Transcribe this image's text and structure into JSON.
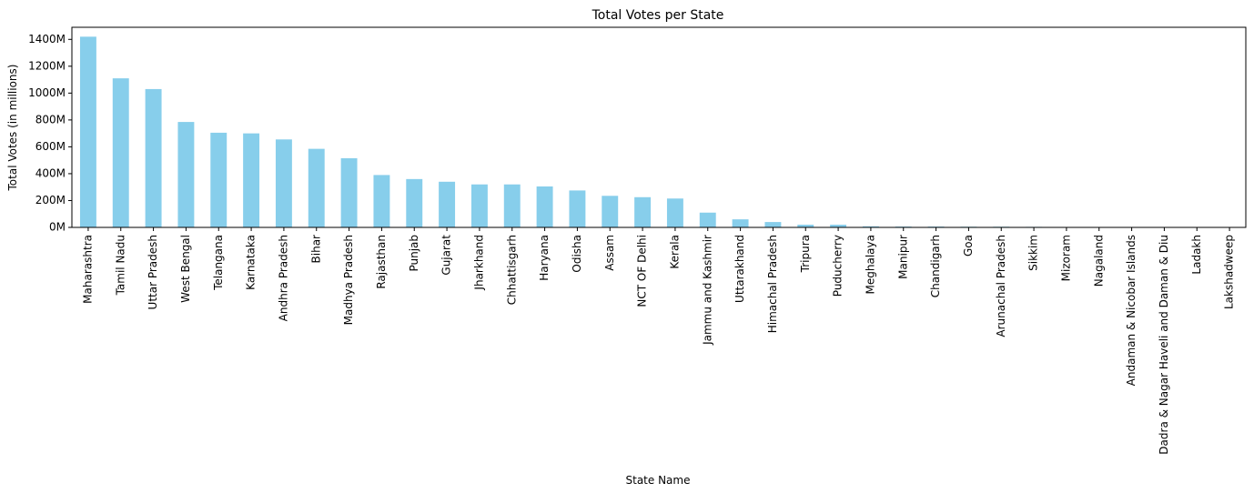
{
  "chart_data": {
    "type": "bar",
    "title": "Total Votes per State",
    "xlabel": "State Name",
    "ylabel": "Total Votes (in millions)",
    "ylim": [
      0,
      1490
    ],
    "yticks": [
      0,
      200,
      400,
      600,
      800,
      1000,
      1200,
      1400
    ],
    "ytick_labels": [
      "0M",
      "200M",
      "400M",
      "600M",
      "800M",
      "1000M",
      "1200M",
      "1400M"
    ],
    "bar_color": "#87ceeb",
    "grid": false,
    "legend": "none",
    "categories": [
      "Maharashtra",
      "Tamil Nadu",
      "Uttar Pradesh",
      "West Bengal",
      "Telangana",
      "Karnataka",
      "Andhra Pradesh",
      "Bihar",
      "Madhya Pradesh",
      "Rajasthan",
      "Punjab",
      "Gujarat",
      "Jharkhand",
      "Chhattisgarh",
      "Haryana",
      "Odisha",
      "Assam",
      "NCT OF Delhi",
      "Kerala",
      "Jammu and Kashmir",
      "Uttarakhand",
      "Himachal Pradesh",
      "Tripura",
      "Puducherry",
      "Meghalaya",
      "Manipur",
      "Chandigarh",
      "Goa",
      "Arunachal Pradesh",
      "Sikkim",
      "Mizoram",
      "Nagaland",
      "Andaman & Nicobar Islands",
      "Dadra & Nagar Haveli and Daman & Diu",
      "Ladakh",
      "Lakshadweep"
    ],
    "values": [
      1420,
      1110,
      1030,
      785,
      705,
      700,
      655,
      585,
      515,
      390,
      360,
      340,
      320,
      320,
      305,
      275,
      235,
      225,
      215,
      110,
      60,
      40,
      20,
      20,
      8,
      6,
      6,
      5,
      5,
      4,
      2,
      2,
      1,
      1,
      1,
      0.5
    ]
  }
}
